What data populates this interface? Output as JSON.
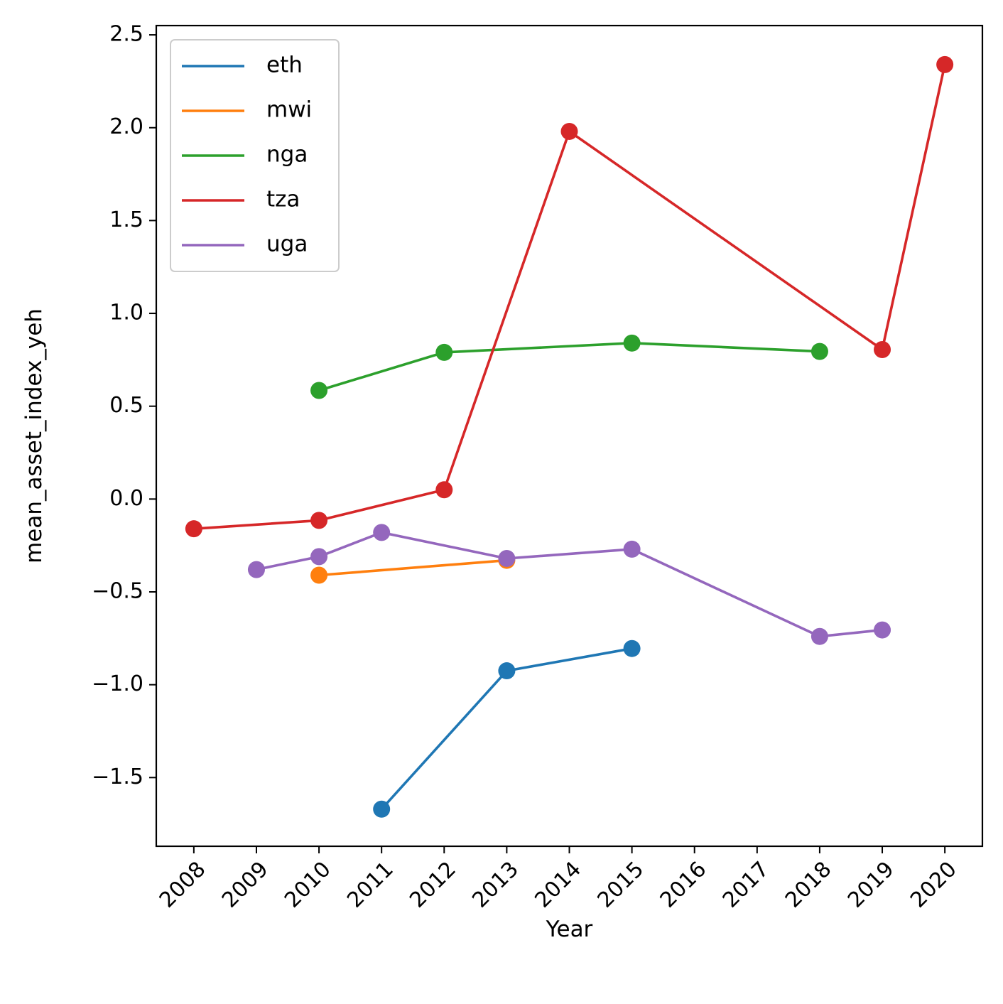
{
  "chart_data": {
    "type": "line",
    "xlabel": "Year",
    "ylabel": "mean_asset_index_yeh",
    "x_ticks": [
      "2008",
      "2009",
      "2010",
      "2011",
      "2012",
      "2013",
      "2014",
      "2015",
      "2016",
      "2017",
      "2018",
      "2019",
      "2020"
    ],
    "y_ticks": [
      "−1.5",
      "−1.0",
      "−0.5",
      "0.0",
      "0.5",
      "1.0",
      "1.5",
      "2.0",
      "2.5"
    ],
    "xlim": [
      2007.4,
      2020.6
    ],
    "ylim": [
      -1.87,
      2.55
    ],
    "grid": false,
    "legend_position": "upper-left",
    "series": [
      {
        "name": "eth",
        "color": "#1f77b4",
        "x": [
          2011,
          2013,
          2015
        ],
        "y": [
          -1.67,
          -0.925,
          -0.805
        ]
      },
      {
        "name": "mwi",
        "color": "#ff7f0e",
        "x": [
          2010,
          2013
        ],
        "y": [
          -0.41,
          -0.33
        ]
      },
      {
        "name": "nga",
        "color": "#2ca02c",
        "x": [
          2010,
          2012,
          2015,
          2018
        ],
        "y": [
          0.585,
          0.79,
          0.84,
          0.795
        ]
      },
      {
        "name": "tza",
        "color": "#d62728",
        "x": [
          2008,
          2010,
          2012,
          2014,
          2019,
          2020
        ],
        "y": [
          -0.16,
          -0.115,
          0.05,
          1.98,
          0.805,
          2.34
        ]
      },
      {
        "name": "uga",
        "color": "#9467bd",
        "x": [
          2009,
          2010,
          2011,
          2013,
          2015,
          2018,
          2019
        ],
        "y": [
          -0.38,
          -0.31,
          -0.18,
          -0.32,
          -0.27,
          -0.74,
          -0.705
        ]
      }
    ]
  }
}
